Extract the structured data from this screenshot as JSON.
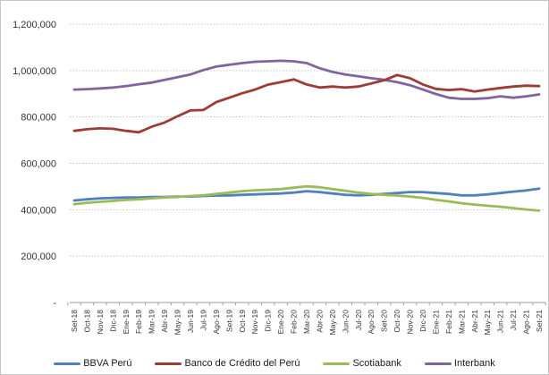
{
  "chart_data": {
    "type": "line",
    "title": "",
    "xlabel": "",
    "ylabel": "",
    "ylim": [
      0,
      1200000
    ],
    "grid": "horizontal-dotted",
    "legend_position": "bottom",
    "y_ticks": [
      {
        "label": "1,200,000",
        "value": 1200000
      },
      {
        "label": "1,000,000",
        "value": 1000000
      },
      {
        "label": "800,000",
        "value": 800000
      },
      {
        "label": "600,000",
        "value": 600000
      },
      {
        "label": "400,000",
        "value": 400000
      },
      {
        "label": "200,000",
        "value": 200000
      },
      {
        "label": "-",
        "value": 0
      }
    ],
    "x_categories": [
      "Set-18",
      "Oct-18",
      "Nov-18",
      "Dic-18",
      "Ene-19",
      "Feb-19",
      "Mar-19",
      "Abr-19",
      "May-19",
      "Jun-19",
      "Jul-19",
      "Ago-19",
      "Set-19",
      "Oct-19",
      "Nov-19",
      "Dic-19",
      "Ene-20",
      "Feb-20",
      "Mar-20",
      "Abr-20",
      "May-20",
      "Jun-20",
      "Jul-20",
      "Ago-20",
      "Set-20",
      "Oct-20",
      "Nov-20",
      "Dic-20",
      "Ene-21",
      "Feb-21",
      "Mar-21",
      "Abr-21",
      "May-21",
      "Jun-21",
      "Jul-21",
      "Ago-21",
      "Set-21"
    ],
    "series": [
      {
        "name": "BBVA Perú",
        "color": "#4F81BD",
        "values": [
          440000,
          445000,
          449000,
          451000,
          453000,
          453000,
          455000,
          455000,
          457000,
          457000,
          459000,
          461000,
          462000,
          464000,
          466000,
          468000,
          470000,
          474000,
          480000,
          476000,
          470000,
          464000,
          462000,
          464000,
          468000,
          472000,
          476000,
          476000,
          472000,
          468000,
          462000,
          462000,
          466000,
          472000,
          478000,
          483000,
          491000
        ]
      },
      {
        "name": "Banco de Crédito del Perú",
        "color": "#9E3B35",
        "values": [
          740000,
          747000,
          751000,
          749000,
          740000,
          734000,
          758000,
          776000,
          803000,
          828000,
          830000,
          864000,
          883000,
          902000,
          918000,
          939000,
          950000,
          962000,
          940000,
          927000,
          931000,
          927000,
          931000,
          944000,
          958000,
          981000,
          967000,
          940000,
          921000,
          916000,
          920000,
          910000,
          918000,
          925000,
          931000,
          935000,
          933000
        ]
      },
      {
        "name": "Scotiabank",
        "color": "#9BBB59",
        "values": [
          424000,
          430000,
          434000,
          438000,
          442000,
          445000,
          449000,
          453000,
          455000,
          459000,
          462000,
          468000,
          474000,
          480000,
          484000,
          486000,
          489000,
          495000,
          501000,
          497000,
          489000,
          482000,
          474000,
          468000,
          464000,
          461000,
          457000,
          451000,
          443000,
          436000,
          428000,
          422000,
          417000,
          413000,
          407000,
          401000,
          396000
        ]
      },
      {
        "name": "Interbank",
        "color": "#8064A2",
        "values": [
          918000,
          920000,
          923000,
          927000,
          933000,
          941000,
          948000,
          960000,
          971000,
          983000,
          1002000,
          1017000,
          1025000,
          1032000,
          1038000,
          1040000,
          1042000,
          1040000,
          1032000,
          1010000,
          994000,
          983000,
          975000,
          967000,
          960000,
          950000,
          937000,
          918000,
          899000,
          883000,
          878000,
          878000,
          881000,
          889000,
          883000,
          889000,
          897000
        ]
      }
    ],
    "style": {
      "gridline_color": "#c2c2c2",
      "axis_color": "#9e9e9e",
      "label_color": "#333333",
      "background": "#ffffff"
    }
  }
}
